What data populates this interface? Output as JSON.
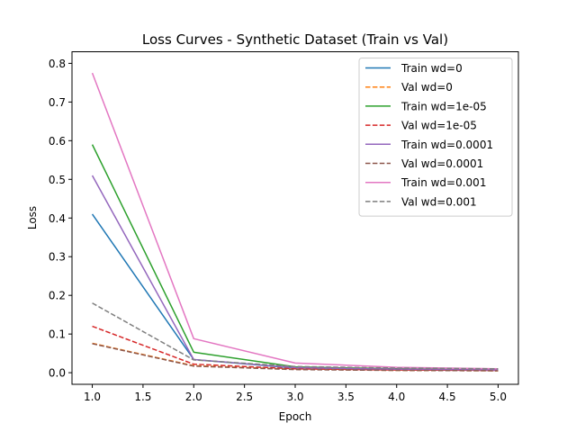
{
  "chart_data": {
    "type": "line",
    "title": "Loss Curves - Synthetic Dataset (Train vs Val)",
    "xlabel": "Epoch",
    "ylabel": "Loss",
    "xlim": [
      0.8,
      5.2
    ],
    "ylim": [
      -0.03,
      0.83
    ],
    "xticks": [
      1.0,
      1.5,
      2.0,
      2.5,
      3.0,
      3.5,
      4.0,
      4.5,
      5.0
    ],
    "xtick_labels": [
      "1.0",
      "1.5",
      "2.0",
      "2.5",
      "3.0",
      "3.5",
      "4.0",
      "4.5",
      "5.0"
    ],
    "yticks": [
      0.0,
      0.1,
      0.2,
      0.3,
      0.4,
      0.5,
      0.6,
      0.7,
      0.8
    ],
    "ytick_labels": [
      "0.0",
      "0.1",
      "0.2",
      "0.3",
      "0.4",
      "0.5",
      "0.6",
      "0.7",
      "0.8"
    ],
    "grid": false,
    "legend_position": "top-right",
    "x": [
      1,
      2,
      3,
      4,
      5
    ],
    "series": [
      {
        "name": "Train wd=0",
        "color": "#1f77b4",
        "dash": "solid",
        "values": [
          0.41,
          0.034,
          0.012,
          0.008,
          0.006
        ]
      },
      {
        "name": "Val wd=0",
        "color": "#ff7f0e",
        "dash": "dashed",
        "values": [
          0.076,
          0.018,
          0.009,
          0.006,
          0.005
        ]
      },
      {
        "name": "Train wd=1e-05",
        "color": "#2ca02c",
        "dash": "solid",
        "values": [
          0.59,
          0.053,
          0.015,
          0.01,
          0.007
        ]
      },
      {
        "name": "Val wd=1e-05",
        "color": "#d62728",
        "dash": "dashed",
        "values": [
          0.12,
          0.022,
          0.01,
          0.007,
          0.006
        ]
      },
      {
        "name": "Train wd=0.0001",
        "color": "#9467bd",
        "dash": "solid",
        "values": [
          0.51,
          0.034,
          0.013,
          0.009,
          0.007
        ]
      },
      {
        "name": "Val wd=0.0001",
        "color": "#8c564b",
        "dash": "dashed",
        "values": [
          0.075,
          0.017,
          0.008,
          0.006,
          0.005
        ]
      },
      {
        "name": "Train wd=0.001",
        "color": "#e377c2",
        "dash": "solid",
        "values": [
          0.775,
          0.088,
          0.025,
          0.014,
          0.01
        ]
      },
      {
        "name": "Val wd=0.001",
        "color": "#7f7f7f",
        "dash": "dashed",
        "values": [
          0.18,
          0.033,
          0.016,
          0.012,
          0.01
        ]
      }
    ]
  }
}
